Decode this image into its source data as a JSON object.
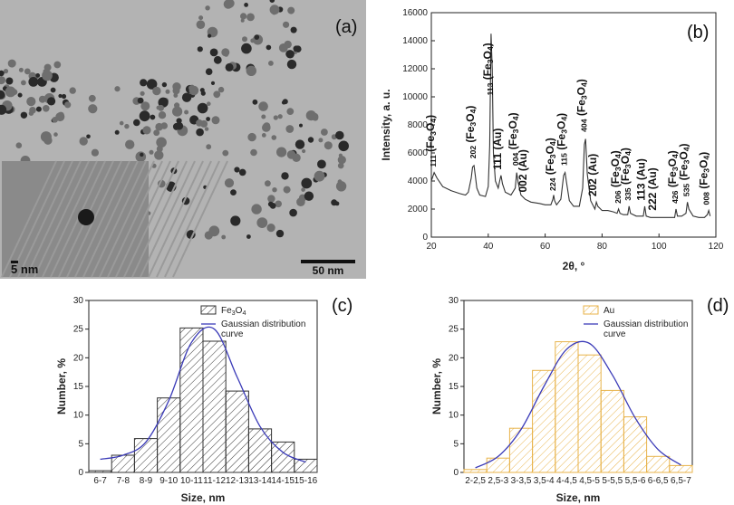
{
  "panel_labels": {
    "a": "(a)",
    "b": "(b)",
    "c": "(c)",
    "d": "(d)"
  },
  "tem": {
    "scale_main": "50 nm",
    "scale_inset": "5 nm"
  },
  "colors": {
    "histogram_c": "#333333",
    "histogram_d": "#e8b34a",
    "fit": "#3b3bb8",
    "xrd": "#333333"
  },
  "chart_data": [
    {
      "id": "b",
      "type": "line",
      "xlabel": "2θ, °",
      "ylabel": "Intensity, a. u.",
      "xlim": [
        20,
        120
      ],
      "ylim": [
        0,
        16000
      ],
      "xticks": [
        20,
        40,
        60,
        80,
        100,
        120
      ],
      "yticks": [
        0,
        2000,
        4000,
        6000,
        8000,
        10000,
        12000,
        14000,
        16000
      ],
      "x": [
        20,
        21,
        22,
        24,
        27,
        30,
        32,
        33,
        34,
        34.5,
        35,
        35.5,
        36,
        37,
        39,
        40,
        40.5,
        41,
        41.4,
        41.8,
        42.5,
        43.5,
        44,
        44.5,
        45,
        46,
        48,
        49.5,
        50,
        50.5,
        51.5,
        53,
        55,
        58,
        60,
        62,
        62.7,
        63,
        63.3,
        64,
        65.5,
        66.5,
        67,
        67.5,
        68.5,
        70,
        72,
        73.2,
        73.8,
        74.2,
        74.8,
        76,
        77.5,
        78,
        78.5,
        80,
        82,
        84,
        85.3,
        85.8,
        86.3,
        87.5,
        89,
        89.5,
        90,
        92,
        94.5,
        95,
        95.5,
        97,
        98,
        100,
        103,
        105.5,
        106,
        106.5,
        108,
        109.5,
        110,
        110.5,
        112,
        114,
        116,
        117,
        117.5,
        118
      ],
      "values": [
        4000,
        4600,
        4200,
        3600,
        3300,
        3100,
        3000,
        3200,
        4200,
        5000,
        5100,
        4300,
        3500,
        3000,
        2900,
        3600,
        6500,
        14500,
        12000,
        6000,
        4000,
        3500,
        4000,
        4400,
        3800,
        3200,
        3000,
        3500,
        4600,
        3900,
        3000,
        2700,
        2500,
        2400,
        2300,
        2300,
        2700,
        3000,
        2600,
        2300,
        2700,
        4400,
        4600,
        3900,
        2600,
        2200,
        2200,
        3500,
        6600,
        7000,
        4500,
        2600,
        2000,
        2500,
        2200,
        1900,
        1900,
        1800,
        1700,
        2000,
        1700,
        1600,
        1600,
        2200,
        1700,
        1500,
        1500,
        2200,
        1500,
        1400,
        1400,
        1400,
        1400,
        1400,
        2000,
        1500,
        1500,
        1700,
        2500,
        2000,
        1500,
        1400,
        1400,
        1600,
        1900,
        1500
      ],
      "annotations": [
        {
          "x": 21,
          "y": 4800,
          "text": "111 (Fe3O4)"
        },
        {
          "x": 35,
          "y": 5400,
          "text": "202 (Fe3O4)"
        },
        {
          "x": 41,
          "y": 9900,
          "text": "113 (Fe3O4)"
        },
        {
          "x": 44.5,
          "y": 4600,
          "text": "111 (Au)"
        },
        {
          "x": 50,
          "y": 4900,
          "text": "004 (Fe3O4)"
        },
        {
          "x": 53.5,
          "y": 3000,
          "text": "002 (Au)"
        },
        {
          "x": 63,
          "y": 3100,
          "text": "224 (Fe3O4)"
        },
        {
          "x": 67,
          "y": 4900,
          "text": "115 (Fe3O4)"
        },
        {
          "x": 74,
          "y": 7300,
          "text": "404 (Fe3O4)"
        },
        {
          "x": 78,
          "y": 2700,
          "text": "202 (Au)"
        },
        {
          "x": 86,
          "y": 2200,
          "text": "206 (Fe3O4)"
        },
        {
          "x": 89.5,
          "y": 2400,
          "text": "335 (Fe3O4)"
        },
        {
          "x": 95,
          "y": 2400,
          "text": "113 (Au)"
        },
        {
          "x": 99,
          "y": 1700,
          "text": "222 (Au)"
        },
        {
          "x": 106,
          "y": 2200,
          "text": "426 (Fe3O4)"
        },
        {
          "x": 110,
          "y": 2700,
          "text": "535 (Fe3O4)"
        },
        {
          "x": 117,
          "y": 2100,
          "text": "008 (Fe3O4)"
        }
      ]
    },
    {
      "id": "c",
      "type": "bar",
      "categories": [
        "6-7",
        "7-8",
        "8-9",
        "9-10",
        "10-11",
        "11-12",
        "12-13",
        "13-14",
        "14-15",
        "15-16"
      ],
      "values": [
        0.3,
        3.0,
        5.9,
        13.0,
        25.2,
        22.9,
        14.2,
        7.6,
        5.3,
        2.3
      ],
      "fit": [
        2.3,
        3.0,
        5.3,
        12.5,
        22.7,
        25.0,
        16.6,
        8.0,
        3.5,
        1.8
      ],
      "legend": [
        "Fe3O4",
        "Gaussian distribution curve"
      ],
      "xlabel": "Size, nm",
      "ylabel": "Number, %",
      "ylim": [
        0,
        30
      ],
      "yticks": [
        0,
        5,
        10,
        15,
        20,
        25,
        30
      ]
    },
    {
      "id": "d",
      "type": "bar",
      "categories": [
        "2-2,5",
        "2,5-3",
        "3-3,5",
        "3,5-4",
        "4-4,5",
        "4,5-5",
        "5-5,5",
        "5,5-6",
        "6-6,5",
        "6,5-7"
      ],
      "values": [
        0.5,
        2.5,
        7.7,
        17.8,
        22.8,
        20.5,
        14.3,
        9.7,
        2.8,
        1.2
      ],
      "fit": [
        0.8,
        2.8,
        7.5,
        15.0,
        21.5,
        22.5,
        17.0,
        9.5,
        4.0,
        1.3
      ],
      "legend": [
        "Au",
        "Gaussian distribution curve"
      ],
      "xlabel": "Size, nm",
      "ylabel": "Number, %",
      "ylim": [
        0,
        30
      ],
      "yticks": [
        0,
        5,
        10,
        15,
        20,
        25,
        30
      ]
    }
  ]
}
